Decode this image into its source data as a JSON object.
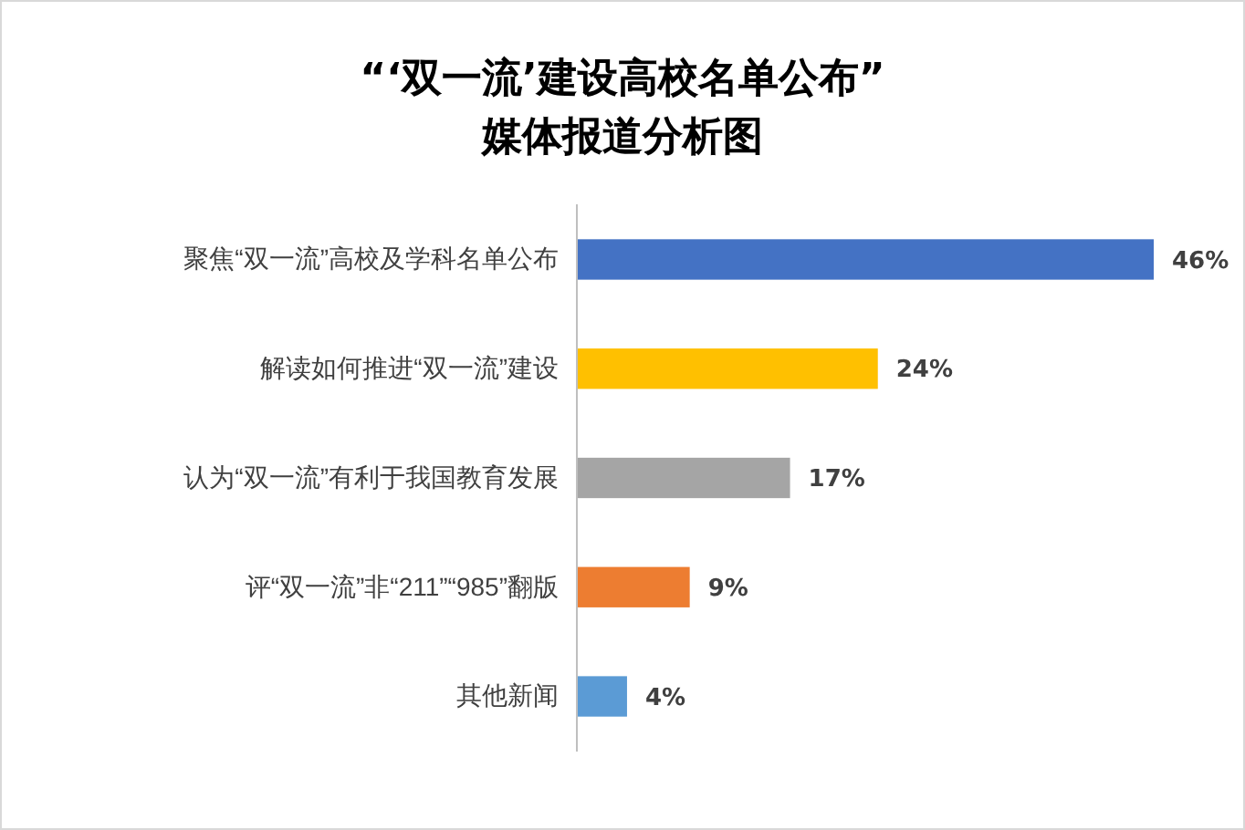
{
  "chart_data": {
    "type": "bar",
    "orientation": "horizontal",
    "title": "“‘双一流’建设高校名单公布”\n媒体报道分析图",
    "categories": [
      "聚焦“双一流”高校及学科名单公布",
      "解读如何推进“双一流”建设",
      "认为“双一流”有利于我国教育发展",
      "评“双一流”非“211”“985”翻版",
      "其他新闻"
    ],
    "values": [
      46,
      24,
      17,
      9,
      4
    ],
    "colors": [
      "#4472c4",
      "#ffc000",
      "#a5a5a5",
      "#ed7d31",
      "#5b9bd5"
    ],
    "value_labels": [
      "46%",
      "24%",
      "17%",
      "9%",
      "4%"
    ]
  }
}
